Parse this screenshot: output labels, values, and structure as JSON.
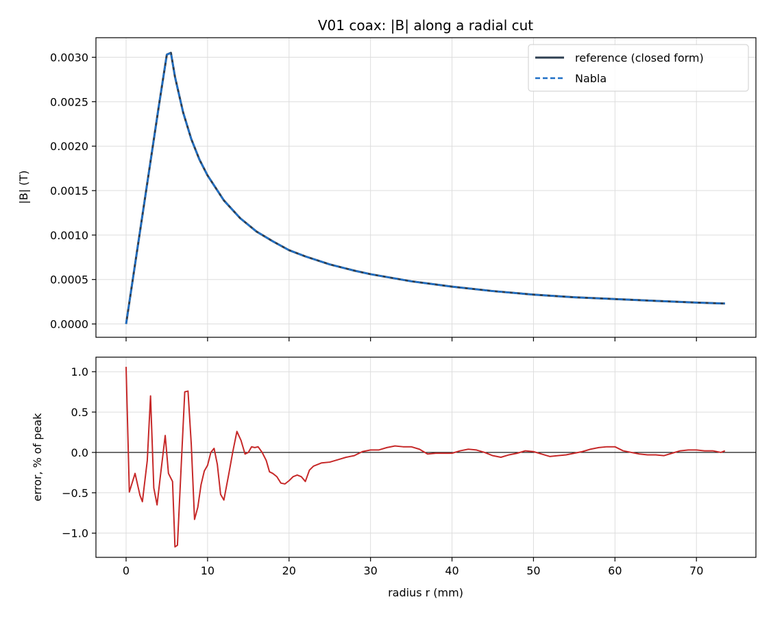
{
  "chart_data": [
    {
      "type": "line",
      "title": "V01 coax: |B| along a radial cut",
      "xlabel": "",
      "ylabel": "|B| (T)",
      "xlim": [
        -3.7,
        77.3
      ],
      "ylim": [
        -0.00015,
        0.00322
      ],
      "x_ticks": [
        0,
        10,
        20,
        30,
        40,
        50,
        60,
        70
      ],
      "y_ticks": [
        0.0,
        0.0005,
        0.001,
        0.0015,
        0.002,
        0.0025,
        0.003
      ],
      "y_tick_labels": [
        "0.0000",
        "0.0005",
        "0.0010",
        "0.0015",
        "0.0020",
        "0.0025",
        "0.0030"
      ],
      "grid": true,
      "legend_position": "top-right",
      "series": [
        {
          "name": "reference (closed form)",
          "color": "#2d3e50",
          "style": "solid",
          "x": [
            0,
            1,
            2,
            3,
            4,
            5.0,
            5.5,
            6,
            7,
            8,
            9,
            10,
            12,
            14,
            16,
            18,
            20,
            22,
            25,
            28,
            30,
            35,
            40,
            45,
            50,
            55,
            60,
            65,
            70,
            73.5
          ],
          "y": [
            0,
            0.00061,
            0.00122,
            0.00183,
            0.00244,
            0.00303,
            0.00305,
            0.00278,
            0.00238,
            0.00208,
            0.00185,
            0.00167,
            0.00139,
            0.00119,
            0.00104,
            0.00093,
            0.00083,
            0.00076,
            0.00067,
            0.0006,
            0.00056,
            0.00048,
            0.00042,
            0.00037,
            0.00033,
            0.0003,
            0.00028,
            0.00026,
            0.00024,
            0.00023
          ]
        },
        {
          "name": "Nabla",
          "color": "#1f6fc6",
          "style": "dashed",
          "x": [
            0,
            1,
            2,
            3,
            4,
            5.0,
            5.5,
            6,
            7,
            8,
            9,
            10,
            12,
            14,
            16,
            18,
            20,
            22,
            25,
            28,
            30,
            35,
            40,
            45,
            50,
            55,
            60,
            65,
            70,
            73.5
          ],
          "y": [
            0,
            0.00061,
            0.00122,
            0.00183,
            0.00244,
            0.00303,
            0.00305,
            0.00278,
            0.00238,
            0.00208,
            0.00185,
            0.00167,
            0.00139,
            0.00119,
            0.00104,
            0.00093,
            0.00083,
            0.00076,
            0.00067,
            0.0006,
            0.00056,
            0.00048,
            0.00042,
            0.00037,
            0.00033,
            0.0003,
            0.00028,
            0.00026,
            0.00024,
            0.00023
          ]
        }
      ]
    },
    {
      "type": "line",
      "title": "",
      "xlabel": "radius r (mm)",
      "ylabel": "error, % of peak",
      "xlim": [
        -3.7,
        77.3
      ],
      "ylim": [
        -1.3,
        1.18
      ],
      "x_ticks": [
        0,
        10,
        20,
        30,
        40,
        50,
        60,
        70
      ],
      "x_tick_labels": [
        "0",
        "10",
        "20",
        "30",
        "40",
        "50",
        "60",
        "70"
      ],
      "y_ticks": [
        -1.0,
        -0.5,
        0.0,
        0.5,
        1.0
      ],
      "y_tick_labels": [
        "−1.0",
        "−0.5",
        "0.0",
        "0.5",
        "1.0"
      ],
      "grid": true,
      "zero_line": true,
      "series": [
        {
          "color": "#c62828",
          "style": "solid",
          "x": [
            0,
            0.4,
            1.1,
            1.7,
            2.0,
            2.6,
            3.0,
            3.4,
            3.8,
            4.2,
            4.8,
            5.2,
            5.7,
            6.0,
            6.3,
            6.7,
            7.2,
            7.6,
            8.0,
            8.4,
            8.8,
            9.2,
            9.6,
            10.0,
            10.4,
            10.8,
            11.2,
            11.6,
            12.0,
            12.6,
            13.1,
            13.6,
            14.1,
            14.6,
            15.0,
            15.4,
            15.8,
            16.2,
            16.7,
            17.2,
            17.6,
            18.0,
            18.5,
            19.0,
            19.5,
            20.0,
            20.5,
            21.0,
            21.5,
            22.0,
            22.5,
            23.0,
            24.0,
            25.0,
            26.0,
            27.0,
            28.0,
            29.0,
            30.0,
            31.0,
            32.0,
            33.0,
            34.0,
            35.0,
            36.0,
            37.0,
            38.0,
            39.0,
            40.0,
            41.0,
            42.0,
            43.0,
            44.0,
            45.0,
            46.0,
            47.0,
            48.0,
            49.0,
            50.0,
            51.0,
            52.0,
            53.0,
            54.0,
            55.0,
            56.0,
            57.0,
            58.0,
            59.0,
            60.0,
            61.0,
            62.0,
            63.0,
            64.0,
            65.0,
            66.0,
            67.0,
            68.0,
            69.0,
            70.0,
            71.0,
            72.0,
            73.0,
            73.5
          ],
          "y": [
            1.06,
            -0.49,
            -0.26,
            -0.53,
            -0.61,
            -0.1,
            0.7,
            -0.44,
            -0.65,
            -0.3,
            0.21,
            -0.26,
            -0.36,
            -1.17,
            -1.15,
            -0.3,
            0.75,
            0.76,
            0.1,
            -0.83,
            -0.68,
            -0.4,
            -0.23,
            -0.16,
            0.0,
            0.05,
            -0.15,
            -0.52,
            -0.59,
            -0.27,
            0.01,
            0.26,
            0.15,
            -0.02,
            0.0,
            0.07,
            0.06,
            0.07,
            0.0,
            -0.1,
            -0.24,
            -0.26,
            -0.3,
            -0.38,
            -0.39,
            -0.35,
            -0.3,
            -0.28,
            -0.3,
            -0.36,
            -0.22,
            -0.17,
            -0.13,
            -0.12,
            -0.09,
            -0.06,
            -0.04,
            0.01,
            0.03,
            0.03,
            0.06,
            0.08,
            0.07,
            0.07,
            0.04,
            -0.02,
            -0.01,
            -0.01,
            -0.01,
            0.02,
            0.04,
            0.03,
            0.0,
            -0.04,
            -0.06,
            -0.03,
            -0.01,
            0.02,
            0.01,
            -0.02,
            -0.05,
            -0.04,
            -0.03,
            -0.01,
            0.01,
            0.04,
            0.06,
            0.07,
            0.07,
            0.02,
            0.0,
            -0.02,
            -0.03,
            -0.03,
            -0.04,
            -0.01,
            0.02,
            0.03,
            0.03,
            0.02,
            0.02,
            0.0,
            0.02
          ]
        }
      ]
    }
  ]
}
